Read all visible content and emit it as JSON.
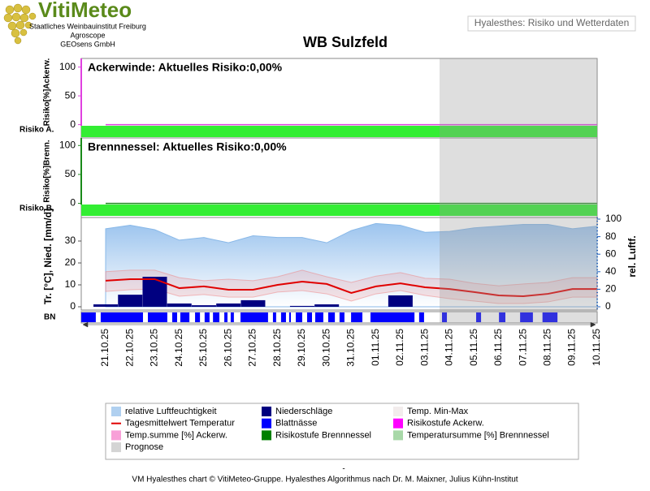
{
  "header": {
    "logo": "VitiMeteo",
    "lines": [
      "Staatliches Weinbauinstitut Freiburg",
      "Agroscope",
      "GEOsens GmbH"
    ],
    "tab": "Hyalesthes: Risiko und Wetterdaten"
  },
  "title": "WB Sulzfeld",
  "chart_data": [
    {
      "type": "risk",
      "title": "Ackerwinde: Aktuelles Risiko:0,00%",
      "y_label": "Risiko[%]Ackerw.",
      "band_label": "Risiko A.",
      "ylim": [
        -2,
        115
      ],
      "yticks": [
        0,
        50,
        100
      ],
      "color": "#e040e0",
      "band_color": "#33ee33",
      "values": [
        0,
        0,
        0,
        0,
        0,
        0,
        0,
        0,
        0,
        0,
        0,
        0,
        0,
        0,
        0,
        0,
        0,
        0,
        0,
        0,
        0
      ]
    },
    {
      "type": "risk",
      "title": "Brennnessel: Aktuelles Risiko:0,00%",
      "y_label": "Risiko[%]Brenn.",
      "band_label": "Risiko B.",
      "ylim": [
        -2,
        113
      ],
      "yticks": [
        0,
        50,
        100
      ],
      "color": "#1a8a1a",
      "band_color": "#33ee33",
      "values": [
        0,
        0,
        0,
        0,
        0,
        0,
        0,
        0,
        0,
        0,
        0,
        0,
        0,
        0,
        0,
        0,
        0,
        0,
        0,
        0,
        0
      ]
    },
    {
      "type": "weather",
      "y_label": "Tr. [°C], Nied. [mm/d]",
      "y2_label": "rel. Luftf.",
      "categories": [
        "21.10.25",
        "22.10.25",
        "23.10.25",
        "24.10.25",
        "25.10.25",
        "26.10.25",
        "27.10.25",
        "28.10.25",
        "29.10.25",
        "30.10.25",
        "31.10.25",
        "01.11.25",
        "02.11.25",
        "03.11.25",
        "04.11.25",
        "05.11.25",
        "06.11.25",
        "07.11.25",
        "08.11.25",
        "09.11.25",
        "10.11.25"
      ],
      "ylim": [
        0,
        40
      ],
      "yticks": [
        0,
        10,
        20,
        30
      ],
      "y2lim": [
        0,
        100
      ],
      "y2ticks": [
        0,
        20,
        40,
        60,
        80,
        100
      ],
      "series": [
        {
          "kind": "area",
          "axis": "y2",
          "color": "#88b8e8",
          "values": [
            89,
            93,
            88,
            76,
            79,
            73,
            81,
            79,
            79,
            73,
            87,
            95,
            93,
            85,
            86,
            90,
            92,
            94,
            94,
            89,
            92
          ]
        },
        {
          "kind": "band",
          "color": "#f08080",
          "values": [
            16,
            16.7,
            16.7,
            13.3,
            11.9,
            12.6,
            11.9,
            13.7,
            16.7,
            13.7,
            11.1,
            14,
            15.6,
            13,
            12.6,
            10.7,
            9.6,
            10.4,
            11.1,
            13.3,
            13.3
          ],
          "low": [
            7,
            7.8,
            8.1,
            4.8,
            5.6,
            4.4,
            4.4,
            6.7,
            7.4,
            5.9,
            2.6,
            5.9,
            7.4,
            5.2,
            3.7,
            2.6,
            1.5,
            1.5,
            2.2,
            4.4,
            4.4
          ]
        },
        {
          "kind": "bar",
          "color": "#000080",
          "values": [
            1.1,
            5.5,
            13.7,
            1.5,
            0.7,
            1.5,
            3,
            0,
            0.4,
            1.1,
            0,
            0,
            5.2,
            0,
            0,
            0,
            0,
            0,
            0,
            0,
            0
          ]
        },
        {
          "kind": "line",
          "color": "#e00000",
          "values": [
            11.9,
            12.6,
            12.6,
            8.5,
            9.3,
            7.8,
            7.8,
            10,
            11.5,
            10.4,
            6.3,
            9.3,
            10.7,
            8.9,
            8.1,
            6.7,
            5.2,
            4.8,
            5.9,
            8.1,
            8.1
          ]
        }
      ],
      "leaf_wetness": {
        "label": "BN",
        "color": "#0000ff",
        "intervals": [
          [
            -0.99,
            -0.4
          ],
          [
            -0.2,
            1.52
          ],
          [
            1.72,
            2.51
          ],
          [
            2.71,
            2.91
          ],
          [
            3.04,
            3.41
          ],
          [
            3.64,
            3.84
          ],
          [
            4.03,
            4.23
          ],
          [
            4.37,
            4.63
          ],
          [
            4.83,
            4.96
          ],
          [
            5.09,
            5.22
          ],
          [
            5.49,
            6.61
          ],
          [
            6.81,
            6.94
          ],
          [
            7.14,
            7.34
          ],
          [
            7.47,
            7.54
          ],
          [
            7.74,
            8.0
          ],
          [
            8.2,
            8.4
          ],
          [
            8.53,
            8.86
          ],
          [
            9.06,
            9.33
          ],
          [
            9.52,
            9.72
          ],
          [
            9.99,
            10.45
          ],
          [
            10.78,
            12.57
          ],
          [
            12.76,
            12.96
          ],
          [
            13.69,
            13.89
          ],
          [
            15.08,
            15.28
          ],
          [
            16.01,
            16.27
          ],
          [
            16.87,
            17.39
          ],
          [
            17.78,
            18.39
          ]
        ]
      }
    }
  ],
  "legend": [
    {
      "label": "relative Luftfeuchtigkeit",
      "color": "#b0d0f0"
    },
    {
      "label": "Niederschläge",
      "color": "#000080"
    },
    {
      "label": "Temp. Min-Max",
      "color": "#f2ecec"
    },
    {
      "label": "Tagesmittelwert Temperatur",
      "color": "#e00000",
      "style": "line"
    },
    {
      "label": "Blattnässe",
      "color": "#0000ff"
    },
    {
      "label": "Risikostufe Ackerw.",
      "color": "#ff00ff"
    },
    {
      "label": "Temp.summe [%] Ackerw.",
      "color": "#f8a0d8"
    },
    {
      "label": "Risikostufe Brennnessel",
      "color": "#008000"
    },
    {
      "label": "Temperatursumme [%] Brennnessel",
      "color": "#a8d8a8"
    },
    {
      "label": "Prognose",
      "color": "#d4d4d4"
    }
  ],
  "footer": {
    "dash": "-",
    "credit": "VM Hyalesthes chart © VitiMeteo-Gruppe. Hyalesthes Algorithmus nach Dr. M. Maixner, Julius Kühn-Institut"
  }
}
